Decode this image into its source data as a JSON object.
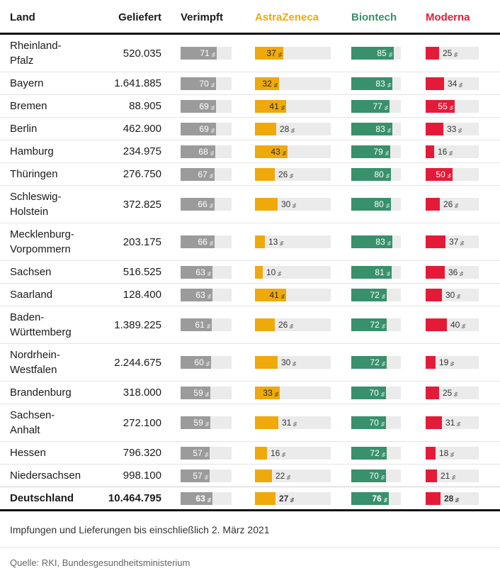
{
  "colors": {
    "verimpft_bar": "#9B9B9B",
    "astrazeneca": "#EFA90B",
    "biontech": "#38906C",
    "moderna": "#E41B38",
    "track": "#EBEBEB",
    "inside_label_light": "#FFFFFF",
    "inside_label_dark": "#262626",
    "outside_label": "#333333"
  },
  "footer": {
    "note": "Impfungen und Lieferungen bis einschließlich 2. März 2021",
    "source": "Quelle: RKI, Bundesgesundheitsministerium"
  },
  "chart_data": {
    "type": "table",
    "unit": "%",
    "columns": [
      "Land",
      "Geliefert",
      "Verimpft",
      "AstraZeneca",
      "Biontech",
      "Moderna"
    ],
    "bar_columns": [
      "Verimpft",
      "AstraZeneca",
      "Biontech",
      "Moderna"
    ],
    "bar_range": [
      0,
      100
    ],
    "rows": [
      {
        "land": "Rheinland-Pfalz",
        "land_display": "Rheinland-\nPfalz",
        "geliefert": "520.035",
        "verimpft": 71,
        "astrazeneca": 37,
        "biontech": 85,
        "moderna": 25
      },
      {
        "land": "Bayern",
        "land_display": "Bayern",
        "geliefert": "1.641.885",
        "verimpft": 70,
        "astrazeneca": 32,
        "biontech": 83,
        "moderna": 34
      },
      {
        "land": "Bremen",
        "land_display": "Bremen",
        "geliefert": "88.905",
        "verimpft": 69,
        "astrazeneca": 41,
        "biontech": 77,
        "moderna": 55
      },
      {
        "land": "Berlin",
        "land_display": "Berlin",
        "geliefert": "462.900",
        "verimpft": 69,
        "astrazeneca": 28,
        "biontech": 83,
        "moderna": 33
      },
      {
        "land": "Hamburg",
        "land_display": "Hamburg",
        "geliefert": "234.975",
        "verimpft": 68,
        "astrazeneca": 43,
        "biontech": 79,
        "moderna": 16
      },
      {
        "land": "Thüringen",
        "land_display": "Thüringen",
        "geliefert": "276.750",
        "verimpft": 67,
        "astrazeneca": 26,
        "biontech": 80,
        "moderna": 50
      },
      {
        "land": "Schleswig-Holstein",
        "land_display": "Schleswig-\nHolstein",
        "geliefert": "372.825",
        "verimpft": 66,
        "astrazeneca": 30,
        "biontech": 80,
        "moderna": 26
      },
      {
        "land": "Mecklenburg-Vorpommern",
        "land_display": "Mecklenburg-\nVorpommern",
        "geliefert": "203.175",
        "verimpft": 66,
        "astrazeneca": 13,
        "biontech": 83,
        "moderna": 37
      },
      {
        "land": "Sachsen",
        "land_display": "Sachsen",
        "geliefert": "516.525",
        "verimpft": 63,
        "astrazeneca": 10,
        "biontech": 81,
        "moderna": 36
      },
      {
        "land": "Saarland",
        "land_display": "Saarland",
        "geliefert": "128.400",
        "verimpft": 63,
        "astrazeneca": 41,
        "biontech": 72,
        "moderna": 30
      },
      {
        "land": "Baden-Württemberg",
        "land_display": "Baden-\nWürttemberg",
        "geliefert": "1.389.225",
        "verimpft": 61,
        "astrazeneca": 26,
        "biontech": 72,
        "moderna": 40
      },
      {
        "land": "Nordrhein-Westfalen",
        "land_display": "Nordrhein-\nWestfalen",
        "geliefert": "2.244.675",
        "verimpft": 60,
        "astrazeneca": 30,
        "biontech": 72,
        "moderna": 19
      },
      {
        "land": "Brandenburg",
        "land_display": "Brandenburg",
        "geliefert": "318.000",
        "verimpft": 59,
        "astrazeneca": 33,
        "biontech": 70,
        "moderna": 25
      },
      {
        "land": "Sachsen-Anhalt",
        "land_display": "Sachsen-\nAnhalt",
        "geliefert": "272.100",
        "verimpft": 59,
        "astrazeneca": 31,
        "biontech": 70,
        "moderna": 31
      },
      {
        "land": "Hessen",
        "land_display": "Hessen",
        "geliefert": "796.320",
        "verimpft": 57,
        "astrazeneca": 16,
        "biontech": 72,
        "moderna": 18
      },
      {
        "land": "Niedersachsen",
        "land_display": "Niedersachsen",
        "geliefert": "998.100",
        "verimpft": 57,
        "astrazeneca": 22,
        "biontech": 70,
        "moderna": 21
      }
    ],
    "total_row": {
      "land": "Deutschland",
      "land_display": "Deutschland",
      "geliefert": "10.464.795",
      "verimpft": 63,
      "astrazeneca": 27,
      "biontech": 76,
      "moderna": 28
    },
    "note": "Impfungen und Lieferungen bis einschließlich 2. März 2021",
    "source": "Quelle: RKI, Bundesgesundheitsministerium"
  }
}
